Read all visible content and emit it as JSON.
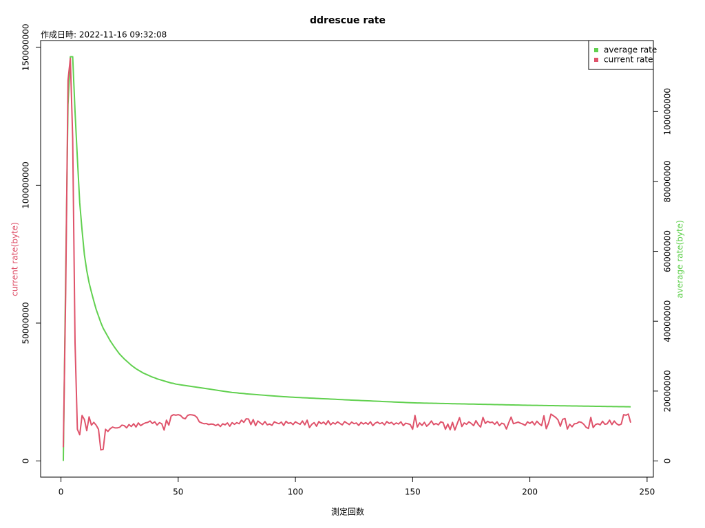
{
  "chart_data": {
    "type": "line",
    "title": "ddrescue rate",
    "subtitle": "作成日時: 2022-11-16 09:32:08",
    "x_label": "測定回数",
    "y_label": "current rate(byte)",
    "y2_label": "average rate(byte)",
    "legend": "topright",
    "xlim": [
      -8.68,
      252.68
    ],
    "xticks": [
      0,
      50,
      100,
      150,
      200,
      250
    ],
    "ylim": [
      -5860000,
      152460000
    ],
    "yticks": [
      0,
      50000000,
      100000000,
      150000000
    ],
    "y2lim": [
      -4628000,
      120328000
    ],
    "y2ticks": [
      0,
      20000000,
      40000000,
      60000000,
      80000000,
      100000000
    ],
    "x": [
      1,
      2,
      3,
      4,
      5,
      6,
      7,
      8,
      9,
      10,
      11,
      12,
      13,
      14,
      15,
      16,
      17,
      18,
      19,
      20,
      21,
      22,
      23,
      24,
      25,
      26,
      27,
      28,
      29,
      30,
      31,
      32,
      33,
      34,
      35,
      36,
      37,
      38,
      39,
      40,
      41,
      42,
      43,
      44,
      45,
      46,
      47,
      48,
      49,
      50,
      51,
      52,
      53,
      54,
      55,
      56,
      57,
      58,
      59,
      60,
      61,
      62,
      63,
      64,
      65,
      66,
      67,
      68,
      69,
      70,
      71,
      72,
      73,
      74,
      75,
      76,
      77,
      78,
      79,
      80,
      81,
      82,
      83,
      84,
      85,
      86,
      87,
      88,
      89,
      90,
      91,
      92,
      93,
      94,
      95,
      96,
      97,
      98,
      99,
      100,
      101,
      102,
      103,
      104,
      105,
      106,
      107,
      108,
      109,
      110,
      111,
      112,
      113,
      114,
      115,
      116,
      117,
      118,
      119,
      120,
      121,
      122,
      123,
      124,
      125,
      126,
      127,
      128,
      129,
      130,
      131,
      132,
      133,
      134,
      135,
      136,
      137,
      138,
      139,
      140,
      141,
      142,
      143,
      144,
      145,
      146,
      147,
      148,
      149,
      150,
      151,
      152,
      153,
      154,
      155,
      156,
      157,
      158,
      159,
      160,
      161,
      162,
      163,
      164,
      165,
      166,
      167,
      168,
      169,
      170,
      171,
      172,
      173,
      174,
      175,
      176,
      177,
      178,
      179,
      180,
      181,
      182,
      183,
      184,
      185,
      186,
      187,
      188,
      189,
      190,
      191,
      192,
      193,
      194,
      195,
      196,
      197,
      198,
      199,
      200,
      201,
      202,
      203,
      204,
      205,
      206,
      207,
      208,
      209,
      210,
      211,
      212,
      213,
      214,
      215,
      216,
      217,
      218,
      219,
      220,
      221,
      222,
      223,
      224,
      225,
      226,
      227,
      228,
      229,
      230,
      231,
      232,
      233,
      234,
      235,
      236,
      237,
      238,
      239,
      240,
      241,
      242,
      243
    ],
    "series": [
      {
        "name": "average rate",
        "color": "#61D04F",
        "axis": "y2",
        "values": [
          0,
          53000000,
          102000000,
          115700000,
          115700000,
          100000000,
          86600000,
          73900000,
          66000000,
          59000000,
          54500000,
          51000000,
          48300000,
          45800000,
          43400000,
          41500000,
          39600000,
          38000000,
          36800000,
          35600000,
          34400000,
          33400000,
          32400000,
          31500000,
          30600000,
          29900000,
          29200000,
          28600000,
          28000000,
          27400000,
          26900000,
          26400000,
          26000000,
          25600000,
          25200000,
          24900000,
          24600000,
          24300000,
          24000000,
          23800000,
          23500000,
          23300000,
          23100000,
          22900000,
          22700000,
          22500000,
          22300000,
          22200000,
          22000000,
          21900000,
          21800000,
          21700000,
          21600000,
          21500000,
          21400000,
          21300000,
          21200000,
          21100000,
          21000000,
          20900000,
          20800000,
          20700000,
          20600000,
          20500000,
          20400000,
          20300000,
          20200000,
          20100000,
          20000000,
          19900000,
          19800000,
          19700000,
          19600000,
          19550000,
          19500000,
          19400000,
          19350000,
          19300000,
          19200000,
          19150000,
          19100000,
          19050000,
          19000000,
          18950000,
          18900000,
          18850000,
          18800000,
          18750000,
          18700000,
          18650000,
          18600000,
          18550000,
          18500000,
          18450000,
          18400000,
          18360000,
          18320000,
          18280000,
          18240000,
          18200000,
          18170000,
          18140000,
          18100000,
          18070000,
          18040000,
          18010000,
          17970000,
          17940000,
          17910000,
          17880000,
          17840000,
          17810000,
          17780000,
          17750000,
          17710000,
          17680000,
          17650000,
          17620000,
          17580000,
          17550000,
          17520000,
          17490000,
          17450000,
          17420000,
          17390000,
          17360000,
          17330000,
          17300000,
          17270000,
          17240000,
          17210000,
          17180000,
          17150000,
          17120000,
          17090000,
          17060000,
          17030000,
          17000000,
          16970000,
          16940000,
          16910000,
          16880000,
          16850000,
          16820000,
          16790000,
          16760000,
          16730000,
          16700000,
          16670000,
          16640000,
          16620000,
          16610000,
          16590000,
          16580000,
          16560000,
          16550000,
          16530000,
          16520000,
          16510000,
          16490000,
          16480000,
          16460000,
          16450000,
          16430000,
          16420000,
          16410000,
          16390000,
          16380000,
          16360000,
          16350000,
          16340000,
          16320000,
          16310000,
          16290000,
          16280000,
          16270000,
          16250000,
          16240000,
          16220000,
          16210000,
          16200000,
          16180000,
          16170000,
          16150000,
          16140000,
          16130000,
          16110000,
          16100000,
          16080000,
          16070000,
          16060000,
          16040000,
          16030000,
          16010000,
          16000000,
          15990000,
          15970000,
          15960000,
          15940000,
          15930000,
          15920000,
          15910000,
          15900000,
          15890000,
          15880000,
          15870000,
          15860000,
          15850000,
          15840000,
          15830000,
          15820000,
          15810000,
          15800000,
          15790000,
          15780000,
          15770000,
          15760000,
          15750000,
          15740000,
          15730000,
          15720000,
          15710000,
          15700000,
          15690000,
          15680000,
          15670000,
          15660000,
          15650000,
          15640000,
          15630000,
          15620000,
          15610000,
          15600000,
          15590000,
          15580000,
          15570000,
          15560000,
          15550000,
          15540000,
          15530000,
          15520000,
          15510000,
          15500000
        ]
      },
      {
        "name": "current rate",
        "color": "#DF536B",
        "values": [
          5000000,
          60000000,
          138000000,
          146000000,
          117000000,
          43000000,
          11500000,
          9500000,
          16500000,
          15000000,
          11000000,
          16000000,
          13000000,
          14000000,
          13000000,
          11500000,
          4000000,
          4200000,
          11500000,
          10700000,
          11700000,
          12300000,
          12000000,
          12000000,
          12200000,
          13000000,
          12800000,
          12000000,
          13200000,
          12500000,
          13500000,
          12300000,
          13800000,
          12800000,
          13400000,
          13800000,
          14000000,
          14500000,
          13600000,
          14200000,
          13000000,
          13900000,
          13500000,
          11200000,
          14800000,
          13000000,
          16300000,
          16800000,
          16600000,
          16800000,
          16500000,
          15600000,
          15300000,
          16500000,
          16800000,
          16700000,
          16500000,
          15800000,
          14200000,
          13800000,
          13500000,
          13600000,
          13200000,
          13400000,
          13300000,
          12800000,
          13300000,
          12500000,
          13500000,
          13100000,
          13800000,
          12600000,
          13900000,
          13300000,
          13900000,
          13500000,
          14800000,
          14000000,
          15300000,
          15200000,
          13200000,
          15000000,
          12800000,
          14500000,
          13800000,
          13200000,
          14300000,
          13100000,
          13400000,
          12900000,
          14200000,
          13800000,
          13500000,
          14100000,
          12900000,
          14400000,
          13600000,
          13900000,
          13200000,
          14200000,
          13700000,
          13300000,
          14500000,
          13100000,
          14800000,
          12100000,
          13300000,
          13900000,
          12600000,
          14300000,
          13500000,
          14100000,
          13200000,
          14600000,
          13100000,
          13900000,
          13400000,
          14200000,
          13600000,
          13100000,
          14300000,
          13700000,
          13200000,
          14100000,
          13500000,
          13800000,
          12900000,
          14000000,
          13400000,
          13900000,
          13300000,
          14200000,
          12800000,
          13700000,
          14100000,
          13500000,
          13900000,
          13100000,
          14300000,
          13600000,
          14000000,
          13200000,
          13800000,
          13400000,
          14200000,
          12800000,
          13700000,
          13500000,
          13200000,
          11500000,
          16500000,
          12300000,
          13800000,
          12900000,
          14000000,
          12600000,
          13400000,
          14500000,
          13200000,
          13600000,
          13100000,
          14200000,
          13900000,
          11500000,
          13400000,
          11300000,
          14000000,
          11200000,
          13500000,
          15700000,
          12500000,
          13800000,
          13300000,
          14200000,
          13600000,
          12800000,
          14600000,
          13200000,
          12300000,
          15800000,
          13600000,
          14400000,
          13900000,
          14100000,
          13300000,
          14200000,
          12800000,
          13700000,
          13400000,
          11600000,
          13900000,
          15900000,
          13500000,
          13800000,
          14100000,
          13700000,
          13400000,
          12900000,
          14200000,
          13600000,
          14300000,
          13100000,
          14400000,
          13500000,
          12800000,
          16400000,
          11700000,
          13800000,
          17000000,
          16400000,
          15800000,
          14900000,
          12600000,
          15100000,
          15400000,
          11600000,
          13300000,
          12400000,
          13500000,
          13600000,
          14200000,
          14000000,
          13300000,
          12200000,
          11800000,
          15800000,
          12100000,
          13200000,
          13500000,
          13100000,
          14400000,
          13300000,
          13500000,
          14800000,
          13200000,
          14500000,
          13500000,
          13000000,
          13400000,
          16800000,
          16600000,
          17000000,
          13900000
        ]
      }
    ]
  }
}
